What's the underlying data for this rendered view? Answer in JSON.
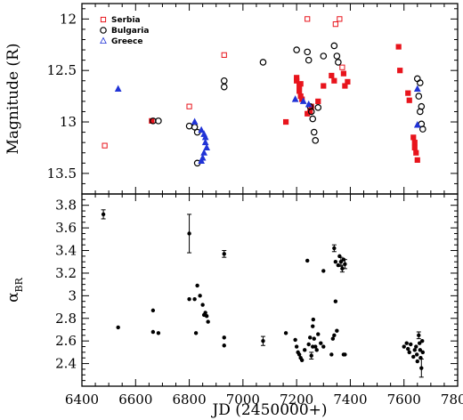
{
  "chart_data": [
    {
      "type": "scatter",
      "panel": "top",
      "xlabel": "JD (2450000+)",
      "ylabel": "Magnitude (R)",
      "xlim": [
        6400,
        7800
      ],
      "ylim": [
        13.7,
        11.85
      ],
      "y_inverted": true,
      "xticks": [
        6400,
        6600,
        6800,
        7000,
        7200,
        7400,
        7600,
        7800
      ],
      "yticks": [
        12,
        12.5,
        13,
        13.5
      ],
      "ytick_labels": [
        "12",
        "12.5",
        "13",
        "13.5"
      ],
      "legend": {
        "position": "top-left"
      },
      "series": [
        {
          "name": "Serbia",
          "color": "#e8141c",
          "marker": "square",
          "points": [
            [
              6485,
              13.23,
              false
            ],
            [
              6660,
              12.99,
              true
            ],
            [
              6800,
              12.85,
              false
            ],
            [
              6930,
              12.35,
              false
            ],
            [
              7160,
              13.0,
              true
            ],
            [
              7200,
              12.57,
              true
            ],
            [
              7200,
              12.6,
              true
            ],
            [
              7210,
              12.65,
              true
            ],
            [
              7210,
              12.7,
              true
            ],
            [
              7215,
              12.75,
              true
            ],
            [
              7220,
              12.78,
              true
            ],
            [
              7215,
              12.63,
              true
            ],
            [
              7240,
              12.0,
              false
            ],
            [
              7240,
              12.92,
              true
            ],
            [
              7250,
              12.9,
              true
            ],
            [
              7255,
              12.85,
              true
            ],
            [
              7280,
              12.8,
              true
            ],
            [
              7300,
              12.65,
              true
            ],
            [
              7330,
              12.55,
              true
            ],
            [
              7340,
              12.6,
              true
            ],
            [
              7345,
              12.05,
              false
            ],
            [
              7360,
              12.0,
              false
            ],
            [
              7370,
              12.47,
              false
            ],
            [
              7375,
              12.53,
              true
            ],
            [
              7380,
              12.65,
              true
            ],
            [
              7390,
              12.61,
              true
            ],
            [
              7580,
              12.27,
              true
            ],
            [
              7585,
              12.5,
              true
            ],
            [
              7615,
              12.72,
              true
            ],
            [
              7620,
              12.79,
              true
            ],
            [
              7635,
              13.15,
              true
            ],
            [
              7640,
              13.2,
              true
            ],
            [
              7640,
              13.25,
              true
            ],
            [
              7645,
              13.3,
              true
            ],
            [
              7650,
              13.37,
              true
            ]
          ]
        },
        {
          "name": "Bulgaria",
          "color": "#000000",
          "marker": "circle",
          "points": [
            [
              6665,
              12.99,
              true
            ],
            [
              6685,
              12.99,
              true
            ],
            [
              6800,
              13.04,
              true
            ],
            [
              6820,
              13.05,
              true
            ],
            [
              6830,
              13.1,
              true
            ],
            [
              6830,
              13.4,
              true
            ],
            [
              6930,
              12.6,
              true
            ],
            [
              6930,
              12.66,
              true
            ],
            [
              7075,
              12.42,
              true
            ],
            [
              7200,
              12.3,
              true
            ],
            [
              7240,
              12.32,
              true
            ],
            [
              7245,
              12.4,
              true
            ],
            [
              7250,
              12.85,
              true
            ],
            [
              7255,
              12.9,
              true
            ],
            [
              7260,
              12.97,
              true
            ],
            [
              7265,
              13.1,
              true
            ],
            [
              7270,
              13.18,
              true
            ],
            [
              7280,
              12.86,
              true
            ],
            [
              7300,
              12.36,
              true
            ],
            [
              7340,
              12.26,
              true
            ],
            [
              7350,
              12.36,
              true
            ],
            [
              7355,
              12.42,
              true
            ],
            [
              7650,
              12.58,
              true
            ],
            [
              7660,
              12.62,
              true
            ],
            [
              7655,
              12.75,
              true
            ],
            [
              7665,
              12.85,
              true
            ],
            [
              7660,
              12.9,
              true
            ],
            [
              7665,
              13.02,
              true
            ],
            [
              7670,
              13.07,
              true
            ]
          ]
        },
        {
          "name": "Greece",
          "color": "#2033d6",
          "marker": "triangle",
          "points": [
            [
              6535,
              12.68,
              true
            ],
            [
              6820,
              13.0,
              true
            ],
            [
              6845,
              13.08,
              true
            ],
            [
              6855,
              13.12,
              true
            ],
            [
              6860,
              13.15,
              true
            ],
            [
              6860,
              13.2,
              true
            ],
            [
              6865,
              13.25,
              true
            ],
            [
              6855,
              13.3,
              true
            ],
            [
              6850,
              13.35,
              true
            ],
            [
              6845,
              13.38,
              true
            ],
            [
              7195,
              12.78,
              true
            ],
            [
              7225,
              12.8,
              true
            ],
            [
              7245,
              12.83,
              true
            ],
            [
              7650,
              12.68,
              true
            ],
            [
              7650,
              13.03,
              true
            ]
          ]
        }
      ]
    },
    {
      "type": "scatter",
      "panel": "bottom",
      "xlabel": "JD (2450000+)",
      "ylabel": "α_BR",
      "ylabel_base": "α",
      "ylabel_sub": "BR",
      "xlim": [
        6400,
        7800
      ],
      "ylim": [
        2.2,
        3.9
      ],
      "xticks": [
        6400,
        6600,
        6800,
        7000,
        7200,
        7400,
        7600,
        7800
      ],
      "yticks": [
        2.4,
        2.6,
        2.8,
        3.0,
        3.2,
        3.4,
        3.6,
        3.8
      ],
      "ytick_labels": [
        "2.4",
        "2.6",
        "2.8",
        "3",
        "3.2",
        "3.4",
        "3.6",
        "3.8"
      ],
      "points": [
        [
          6480,
          3.72,
          0.04
        ],
        [
          6535,
          2.72,
          0
        ],
        [
          6665,
          2.87,
          0
        ],
        [
          6665,
          2.68,
          0
        ],
        [
          6685,
          2.67,
          0
        ],
        [
          6800,
          3.55,
          0.17
        ],
        [
          6800,
          2.97,
          0
        ],
        [
          6820,
          2.97,
          0
        ],
        [
          6825,
          2.67,
          0
        ],
        [
          6830,
          3.09,
          0
        ],
        [
          6840,
          3.0,
          0
        ],
        [
          6850,
          2.92,
          0
        ],
        [
          6855,
          2.83,
          0
        ],
        [
          6860,
          2.85,
          0
        ],
        [
          6865,
          2.82,
          0
        ],
        [
          6870,
          2.77,
          0
        ],
        [
          6930,
          3.37,
          0.03
        ],
        [
          6930,
          2.63,
          0
        ],
        [
          6930,
          2.56,
          0
        ],
        [
          7075,
          2.6,
          0.04
        ],
        [
          7160,
          2.67,
          0
        ],
        [
          7195,
          2.61,
          0
        ],
        [
          7200,
          2.55,
          0
        ],
        [
          7205,
          2.5,
          0
        ],
        [
          7210,
          2.48,
          0
        ],
        [
          7215,
          2.45,
          0
        ],
        [
          7220,
          2.43,
          0
        ],
        [
          7230,
          2.52,
          0
        ],
        [
          7240,
          3.31,
          0
        ],
        [
          7245,
          2.57,
          0
        ],
        [
          7250,
          2.63,
          0
        ],
        [
          7255,
          2.47,
          0.03
        ],
        [
          7260,
          2.55,
          0
        ],
        [
          7260,
          2.73,
          0
        ],
        [
          7262,
          2.79,
          0
        ],
        [
          7265,
          2.62,
          0
        ],
        [
          7270,
          2.55,
          0
        ],
        [
          7275,
          2.52,
          0
        ],
        [
          7280,
          2.66,
          0
        ],
        [
          7290,
          2.58,
          0
        ],
        [
          7300,
          2.55,
          0
        ],
        [
          7300,
          3.22,
          0
        ],
        [
          7330,
          2.48,
          0
        ],
        [
          7335,
          2.62,
          0
        ],
        [
          7340,
          2.65,
          0
        ],
        [
          7340,
          3.42,
          0.03
        ],
        [
          7345,
          3.3,
          0
        ],
        [
          7345,
          2.95,
          0
        ],
        [
          7350,
          2.69,
          0
        ],
        [
          7355,
          3.27,
          0
        ],
        [
          7360,
          3.35,
          0
        ],
        [
          7365,
          3.3,
          0.04
        ],
        [
          7370,
          3.24,
          0.03
        ],
        [
          7375,
          3.32,
          0
        ],
        [
          7380,
          3.28,
          0.04
        ],
        [
          7375,
          2.48,
          0
        ],
        [
          7380,
          2.48,
          0
        ],
        [
          7600,
          2.55,
          0
        ],
        [
          7610,
          2.58,
          0
        ],
        [
          7615,
          2.53,
          0
        ],
        [
          7620,
          2.5,
          0
        ],
        [
          7625,
          2.57,
          0
        ],
        [
          7635,
          2.46,
          0
        ],
        [
          7640,
          2.52,
          0
        ],
        [
          7645,
          2.55,
          0
        ],
        [
          7648,
          2.48,
          0
        ],
        [
          7650,
          2.42,
          0
        ],
        [
          7655,
          2.65,
          0.03
        ],
        [
          7658,
          2.58,
          0
        ],
        [
          7660,
          2.52,
          0
        ],
        [
          7662,
          2.45,
          0
        ],
        [
          7665,
          2.36,
          0.08
        ],
        [
          7668,
          2.6,
          0
        ],
        [
          7670,
          2.5,
          0
        ]
      ]
    }
  ]
}
